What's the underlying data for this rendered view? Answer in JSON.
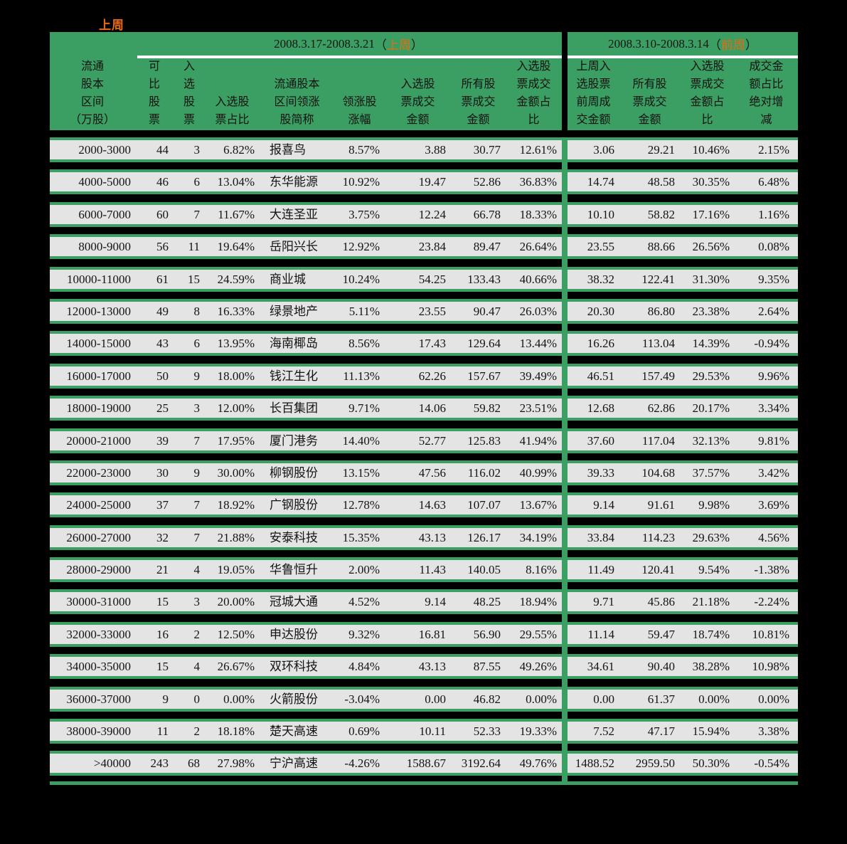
{
  "page": {
    "top_label": "上周",
    "background_color": "#000000"
  },
  "colors": {
    "table_green": "#3b9f63",
    "highlight_orange": "#e96a10",
    "row_background": "#e4e4e4",
    "separator_white": "#ffffff"
  },
  "table": {
    "groups": [
      {
        "date_range": "2008.3.17-2008.3.21",
        "paren_open": "（",
        "period_label": "上周",
        "paren_close": "）"
      },
      {
        "date_range": "2008.3.10-2008.3.14",
        "paren_open": "（",
        "period_label": "前周",
        "paren_close": "）"
      }
    ],
    "headers": [
      {
        "lines": [
          "流通",
          "股本",
          "区间",
          "（万股）"
        ]
      },
      {
        "lines": [
          "可",
          "比",
          "股",
          "票"
        ]
      },
      {
        "lines": [
          "入",
          "选",
          "股",
          "票"
        ]
      },
      {
        "lines": [
          "入选股",
          "票占比"
        ]
      },
      {
        "lines": [
          "流通股本",
          "区间领涨",
          "股简称"
        ]
      },
      {
        "lines": [
          "领涨股",
          "涨幅"
        ]
      },
      {
        "lines": [
          "入选股",
          "票成交",
          "金额"
        ]
      },
      {
        "lines": [
          "所有股",
          "票成交",
          "金额"
        ]
      },
      {
        "lines": [
          "入选股",
          "票成交",
          "金额占",
          "比"
        ]
      },
      {
        "lines": [
          "上周入",
          "选股票",
          "前周成",
          "交金额"
        ]
      },
      {
        "lines": [
          "所有股",
          "票成交",
          "金额"
        ]
      },
      {
        "lines": [
          "入选股",
          "票成交",
          "金额占",
          "比"
        ]
      },
      {
        "lines": [
          "成交金",
          "额占比",
          "绝对增",
          "减"
        ]
      }
    ],
    "rows": [
      [
        "2000-3000",
        "44",
        "3",
        "6.82%",
        "报喜鸟",
        "8.57%",
        "3.88",
        "30.77",
        "12.61%",
        "3.06",
        "29.21",
        "10.46%",
        "2.15%"
      ],
      [
        "4000-5000",
        "46",
        "6",
        "13.04%",
        "东华能源",
        "10.92%",
        "19.47",
        "52.86",
        "36.83%",
        "14.74",
        "48.58",
        "30.35%",
        "6.48%"
      ],
      [
        "6000-7000",
        "60",
        "7",
        "11.67%",
        "大连圣亚",
        "3.75%",
        "12.24",
        "66.78",
        "18.33%",
        "10.10",
        "58.82",
        "17.16%",
        "1.16%"
      ],
      [
        "8000-9000",
        "56",
        "11",
        "19.64%",
        "岳阳兴长",
        "12.92%",
        "23.84",
        "89.47",
        "26.64%",
        "23.55",
        "88.66",
        "26.56%",
        "0.08%"
      ],
      [
        "10000-11000",
        "61",
        "15",
        "24.59%",
        "商业城",
        "10.24%",
        "54.25",
        "133.43",
        "40.66%",
        "38.32",
        "122.41",
        "31.30%",
        "9.35%"
      ],
      [
        "12000-13000",
        "49",
        "8",
        "16.33%",
        "绿景地产",
        "5.11%",
        "23.55",
        "90.47",
        "26.03%",
        "20.30",
        "86.80",
        "23.38%",
        "2.64%"
      ],
      [
        "14000-15000",
        "43",
        "6",
        "13.95%",
        "海南椰岛",
        "8.56%",
        "17.43",
        "129.64",
        "13.44%",
        "16.26",
        "113.04",
        "14.39%",
        "-0.94%"
      ],
      [
        "16000-17000",
        "50",
        "9",
        "18.00%",
        "钱江生化",
        "11.13%",
        "62.26",
        "157.67",
        "39.49%",
        "46.51",
        "157.49",
        "29.53%",
        "9.96%"
      ],
      [
        "18000-19000",
        "25",
        "3",
        "12.00%",
        "长百集团",
        "9.71%",
        "14.06",
        "59.82",
        "23.51%",
        "12.68",
        "62.86",
        "20.17%",
        "3.34%"
      ],
      [
        "20000-21000",
        "39",
        "7",
        "17.95%",
        "厦门港务",
        "14.40%",
        "52.77",
        "125.83",
        "41.94%",
        "37.60",
        "117.04",
        "32.13%",
        "9.81%"
      ],
      [
        "22000-23000",
        "30",
        "9",
        "30.00%",
        "柳钢股份",
        "13.15%",
        "47.56",
        "116.02",
        "40.99%",
        "39.33",
        "104.68",
        "37.57%",
        "3.42%"
      ],
      [
        "24000-25000",
        "37",
        "7",
        "18.92%",
        "广钢股份",
        "12.78%",
        "14.63",
        "107.07",
        "13.67%",
        "9.14",
        "91.61",
        "9.98%",
        "3.69%"
      ],
      [
        "26000-27000",
        "32",
        "7",
        "21.88%",
        "安泰科技",
        "15.35%",
        "43.13",
        "126.17",
        "34.19%",
        "33.84",
        "114.23",
        "29.63%",
        "4.56%"
      ],
      [
        "28000-29000",
        "21",
        "4",
        "19.05%",
        "华鲁恒升",
        "2.00%",
        "11.43",
        "140.05",
        "8.16%",
        "11.49",
        "120.41",
        "9.54%",
        "-1.38%"
      ],
      [
        "30000-31000",
        "15",
        "3",
        "20.00%",
        "冠城大通",
        "4.52%",
        "9.14",
        "48.25",
        "18.94%",
        "9.71",
        "45.86",
        "21.18%",
        "-2.24%"
      ],
      [
        "32000-33000",
        "16",
        "2",
        "12.50%",
        "申达股份",
        "9.32%",
        "16.81",
        "56.90",
        "29.55%",
        "11.14",
        "59.47",
        "18.74%",
        "10.81%"
      ],
      [
        "34000-35000",
        "15",
        "4",
        "26.67%",
        "双环科技",
        "4.84%",
        "43.13",
        "87.55",
        "49.26%",
        "34.61",
        "90.40",
        "38.28%",
        "10.98%"
      ],
      [
        "36000-37000",
        "9",
        "0",
        "0.00%",
        "火箭股份",
        "-3.04%",
        "0.00",
        "46.82",
        "0.00%",
        "0.00",
        "61.37",
        "0.00%",
        "0.00%"
      ],
      [
        "38000-39000",
        "11",
        "2",
        "18.18%",
        "楚天高速",
        "0.69%",
        "10.11",
        "52.33",
        "19.33%",
        "7.52",
        "47.17",
        "15.94%",
        "3.38%"
      ],
      [
        ">40000",
        "243",
        "68",
        "27.98%",
        "宁沪高速",
        "-4.26%",
        "1588.67",
        "3192.64",
        "49.76%",
        "1488.52",
        "2959.50",
        "50.30%",
        "-0.54%"
      ]
    ]
  }
}
